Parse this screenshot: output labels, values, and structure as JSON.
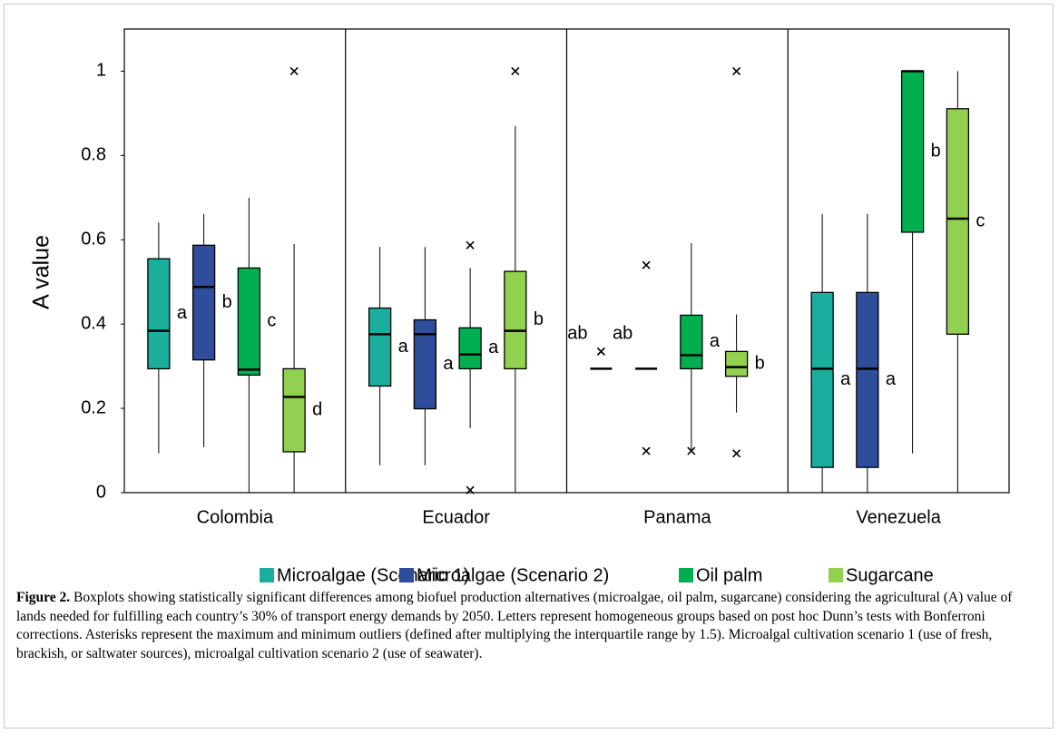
{
  "chart_data": {
    "type": "box",
    "ylabel": "A value",
    "categories": [
      "Colombia",
      "Ecuador",
      "Panama",
      "Venezuela"
    ],
    "ylim": [
      0,
      1.1
    ],
    "yticks": [
      0,
      0.2,
      0.4,
      0.6,
      0.8,
      1
    ],
    "legend": "bottom",
    "series": [
      {
        "name": "Microalgae (Scenario 1)",
        "color": "#1aaf9c",
        "values": [
          {
            "min": 0.093,
            "q1": 0.294,
            "median": 0.384,
            "q3": 0.555,
            "max": 0.641,
            "outliers": []
          },
          {
            "min": 0.065,
            "q1": 0.253,
            "median": 0.376,
            "q3": 0.438,
            "max": 0.583,
            "outliers": []
          },
          {
            "min": 0.294,
            "q1": 0.294,
            "median": 0.294,
            "q3": 0.294,
            "max": 0.294,
            "outliers": [
              0.335
            ]
          },
          {
            "min": 0,
            "q1": 0.06,
            "median": 0.294,
            "q3": 0.475,
            "max": 0.661,
            "outliers": []
          }
        ],
        "group_labels": [
          "a",
          "a",
          "ab",
          "a"
        ]
      },
      {
        "name": "Microalgae (Scenario 2)",
        "color": "#2e4d9b",
        "values": [
          {
            "min": 0.108,
            "q1": 0.315,
            "median": 0.488,
            "q3": 0.587,
            "max": 0.661,
            "outliers": []
          },
          {
            "min": 0.065,
            "q1": 0.199,
            "median": 0.376,
            "q3": 0.41,
            "max": 0.583,
            "outliers": []
          },
          {
            "min": 0.294,
            "q1": 0.294,
            "median": 0.294,
            "q3": 0.294,
            "max": 0.294,
            "outliers": [
              0.54,
              0.099
            ]
          },
          {
            "min": 0,
            "q1": 0.06,
            "median": 0.294,
            "q3": 0.475,
            "max": 0.661,
            "outliers": []
          }
        ],
        "group_labels": [
          "b",
          "a",
          "ab",
          "a"
        ]
      },
      {
        "name": "Oil palm",
        "color": "#00b050",
        "values": [
          {
            "min": 0,
            "q1": 0.279,
            "median": 0.292,
            "q3": 0.533,
            "max": 0.7,
            "outliers": []
          },
          {
            "min": 0.153,
            "q1": 0.294,
            "median": 0.328,
            "q3": 0.391,
            "max": 0.533,
            "outliers": [
              0.587,
              0.006
            ]
          },
          {
            "min": 0.099,
            "q1": 0.294,
            "median": 0.326,
            "q3": 0.421,
            "max": 0.592,
            "outliers": [
              0.099
            ]
          },
          {
            "min": 0.093,
            "q1": 0.618,
            "median": 1,
            "q3": 1,
            "max": 1,
            "outliers": []
          }
        ],
        "group_labels": [
          "c",
          "a",
          "a",
          "b"
        ]
      },
      {
        "name": "Sugarcane",
        "color": "#92d050",
        "values": [
          {
            "min": 0,
            "q1": 0.097,
            "median": 0.227,
            "q3": 0.294,
            "max": 0.59,
            "outliers": [
              1
            ]
          },
          {
            "min": 0,
            "q1": 0.294,
            "median": 0.384,
            "q3": 0.525,
            "max": 0.87,
            "outliers": [
              1
            ]
          },
          {
            "min": 0.19,
            "q1": 0.276,
            "median": 0.298,
            "q3": 0.335,
            "max": 0.423,
            "outliers": [
              1,
              0.093
            ]
          },
          {
            "min": 0,
            "q1": 0.376,
            "median": 0.65,
            "q3": 0.911,
            "max": 1,
            "outliers": []
          }
        ],
        "group_labels": [
          "d",
          "b",
          "b",
          "c"
        ]
      }
    ]
  },
  "caption": {
    "label": "Figure 2.",
    "text": "Boxplots showing statistically significant differences among biofuel production alternatives (microalgae, oil palm, sugarcane) considering the agricultural (A) value of lands needed for fulfilling each country’s 30% of transport energy demands by 2050. Letters represent homogeneous groups based on post hoc Dunn’s tests with Bonferroni corrections. Asterisks represent the maximum and minimum outliers (defined after multiplying the interquartile range by 1.5). Microalgal cultivation scenario 1 (use of fresh, brackish, or saltwater sources), microalgal cultivation scenario 2 (use of seawater)."
  }
}
